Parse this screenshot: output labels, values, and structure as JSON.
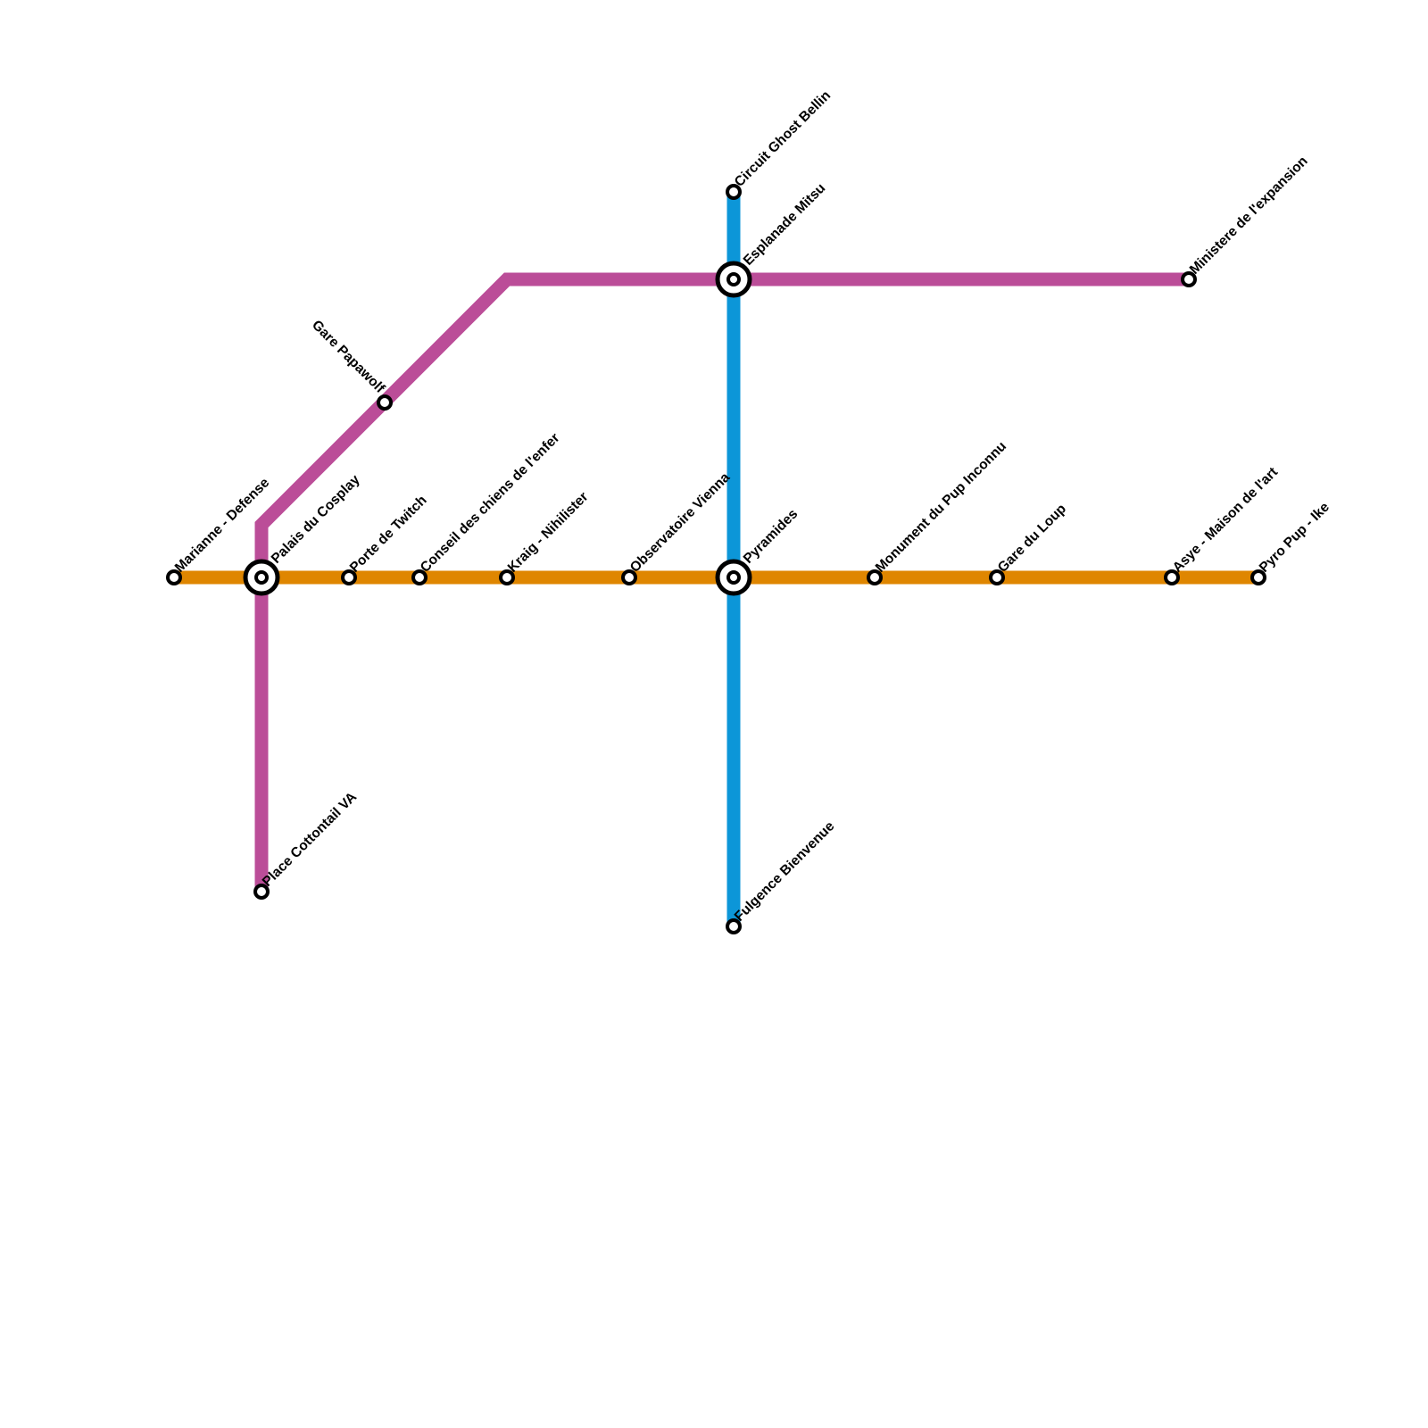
{
  "lines": [
    {
      "id": "orange",
      "color": "#df8600"
    },
    {
      "id": "purple",
      "color": "#bb4d98"
    },
    {
      "id": "blue",
      "color": "#0c96d8"
    }
  ],
  "stations": [
    {
      "name": "Marianne - Defense",
      "interchange": false
    },
    {
      "name": "Palais du Cosplay",
      "interchange": true
    },
    {
      "name": "Porte de Twitch",
      "interchange": false
    },
    {
      "name": "Conseil des chiens de l'enfer",
      "interchange": false
    },
    {
      "name": "Kraig - Nihilister",
      "interchange": false
    },
    {
      "name": "Observatoire Vienna",
      "interchange": false
    },
    {
      "name": "Pyramides",
      "interchange": true
    },
    {
      "name": "Monument du Pup Inconnu",
      "interchange": false
    },
    {
      "name": "Gare du Loup",
      "interchange": false
    },
    {
      "name": "Asye - Maison de l'art",
      "interchange": false
    },
    {
      "name": "Pyro Pup - Ike",
      "interchange": false
    },
    {
      "name": "Place Cottontail VA",
      "interchange": false
    },
    {
      "name": "Gare Papawolf",
      "interchange": false
    },
    {
      "name": "Esplanade Mitsu",
      "interchange": true
    },
    {
      "name": "Ministere de l'expansion",
      "interchange": false
    },
    {
      "name": "Circuit Ghost Bellin",
      "interchange": false
    },
    {
      "name": "Fulgence Bienvenue",
      "interchange": false
    }
  ]
}
